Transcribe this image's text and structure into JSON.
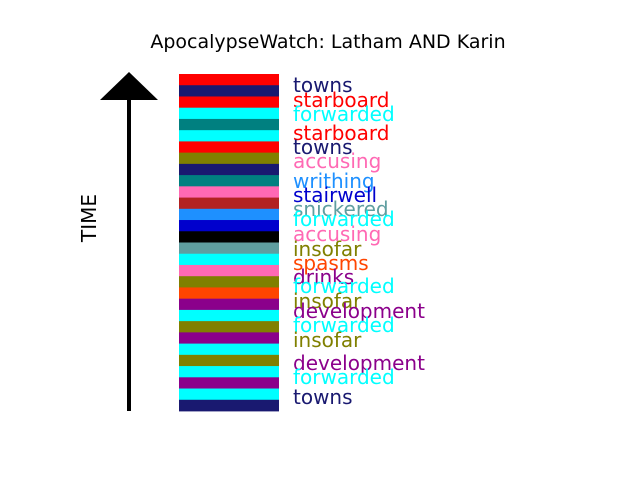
{
  "chart_data": {
    "type": "bar",
    "title": "ApocalypseWatch: Latham AND Karin",
    "ylabel": "TIME",
    "arrow": "up",
    "segments": [
      {
        "color": "#ff0000"
      },
      {
        "color": "#191970"
      },
      {
        "color": "#ff0000"
      },
      {
        "color": "#00ffff"
      },
      {
        "color": "#008080"
      },
      {
        "color": "#00ffff"
      },
      {
        "color": "#ff0000"
      },
      {
        "color": "#808000"
      },
      {
        "color": "#191970"
      },
      {
        "color": "#008080"
      },
      {
        "color": "#ff69b4"
      },
      {
        "color": "#b22222"
      },
      {
        "color": "#1e90ff"
      },
      {
        "color": "#0000cd"
      },
      {
        "color": "#000000"
      },
      {
        "color": "#5f9ea0"
      },
      {
        "color": "#00ffff"
      },
      {
        "color": "#ff69b4"
      },
      {
        "color": "#808000"
      },
      {
        "color": "#ff4500"
      },
      {
        "color": "#8b008b"
      },
      {
        "color": "#00ffff"
      },
      {
        "color": "#808000"
      },
      {
        "color": "#8b008b"
      },
      {
        "color": "#00ffff"
      },
      {
        "color": "#808000"
      },
      {
        "color": "#00ffff"
      },
      {
        "color": "#8b008b"
      },
      {
        "color": "#00ffff"
      },
      {
        "color": "#191970"
      }
    ],
    "labels": [
      {
        "text": "towns",
        "color": "#191970"
      },
      {
        "text": "starboard",
        "color": "#ff0000"
      },
      {
        "text": "forwarded",
        "color": "#00ffff"
      },
      {
        "text": "starboard",
        "color": "#ff0000"
      },
      {
        "text": "towns",
        "color": "#191970"
      },
      {
        "text": "accusing",
        "color": "#ff69b4"
      },
      {
        "text": "writhing",
        "color": "#1e90ff"
      },
      {
        "text": "stairwell",
        "color": "#0000cd"
      },
      {
        "text": "snickered",
        "color": "#5f9ea0"
      },
      {
        "text": "forwarded",
        "color": "#00ffff"
      },
      {
        "text": "accusing",
        "color": "#ff69b4"
      },
      {
        "text": "insofar",
        "color": "#808000"
      },
      {
        "text": "spasms",
        "color": "#ff4500"
      },
      {
        "text": "drinks",
        "color": "#8b008b"
      },
      {
        "text": "forwarded",
        "color": "#00ffff"
      },
      {
        "text": "insofar",
        "color": "#808000"
      },
      {
        "text": "development",
        "color": "#8b008b"
      },
      {
        "text": "forwarded",
        "color": "#00ffff"
      },
      {
        "text": "insofar",
        "color": "#808000"
      },
      {
        "text": "development",
        "color": "#8b008b"
      },
      {
        "text": "forwarded",
        "color": "#00ffff"
      },
      {
        "text": "towns",
        "color": "#191970"
      }
    ]
  }
}
